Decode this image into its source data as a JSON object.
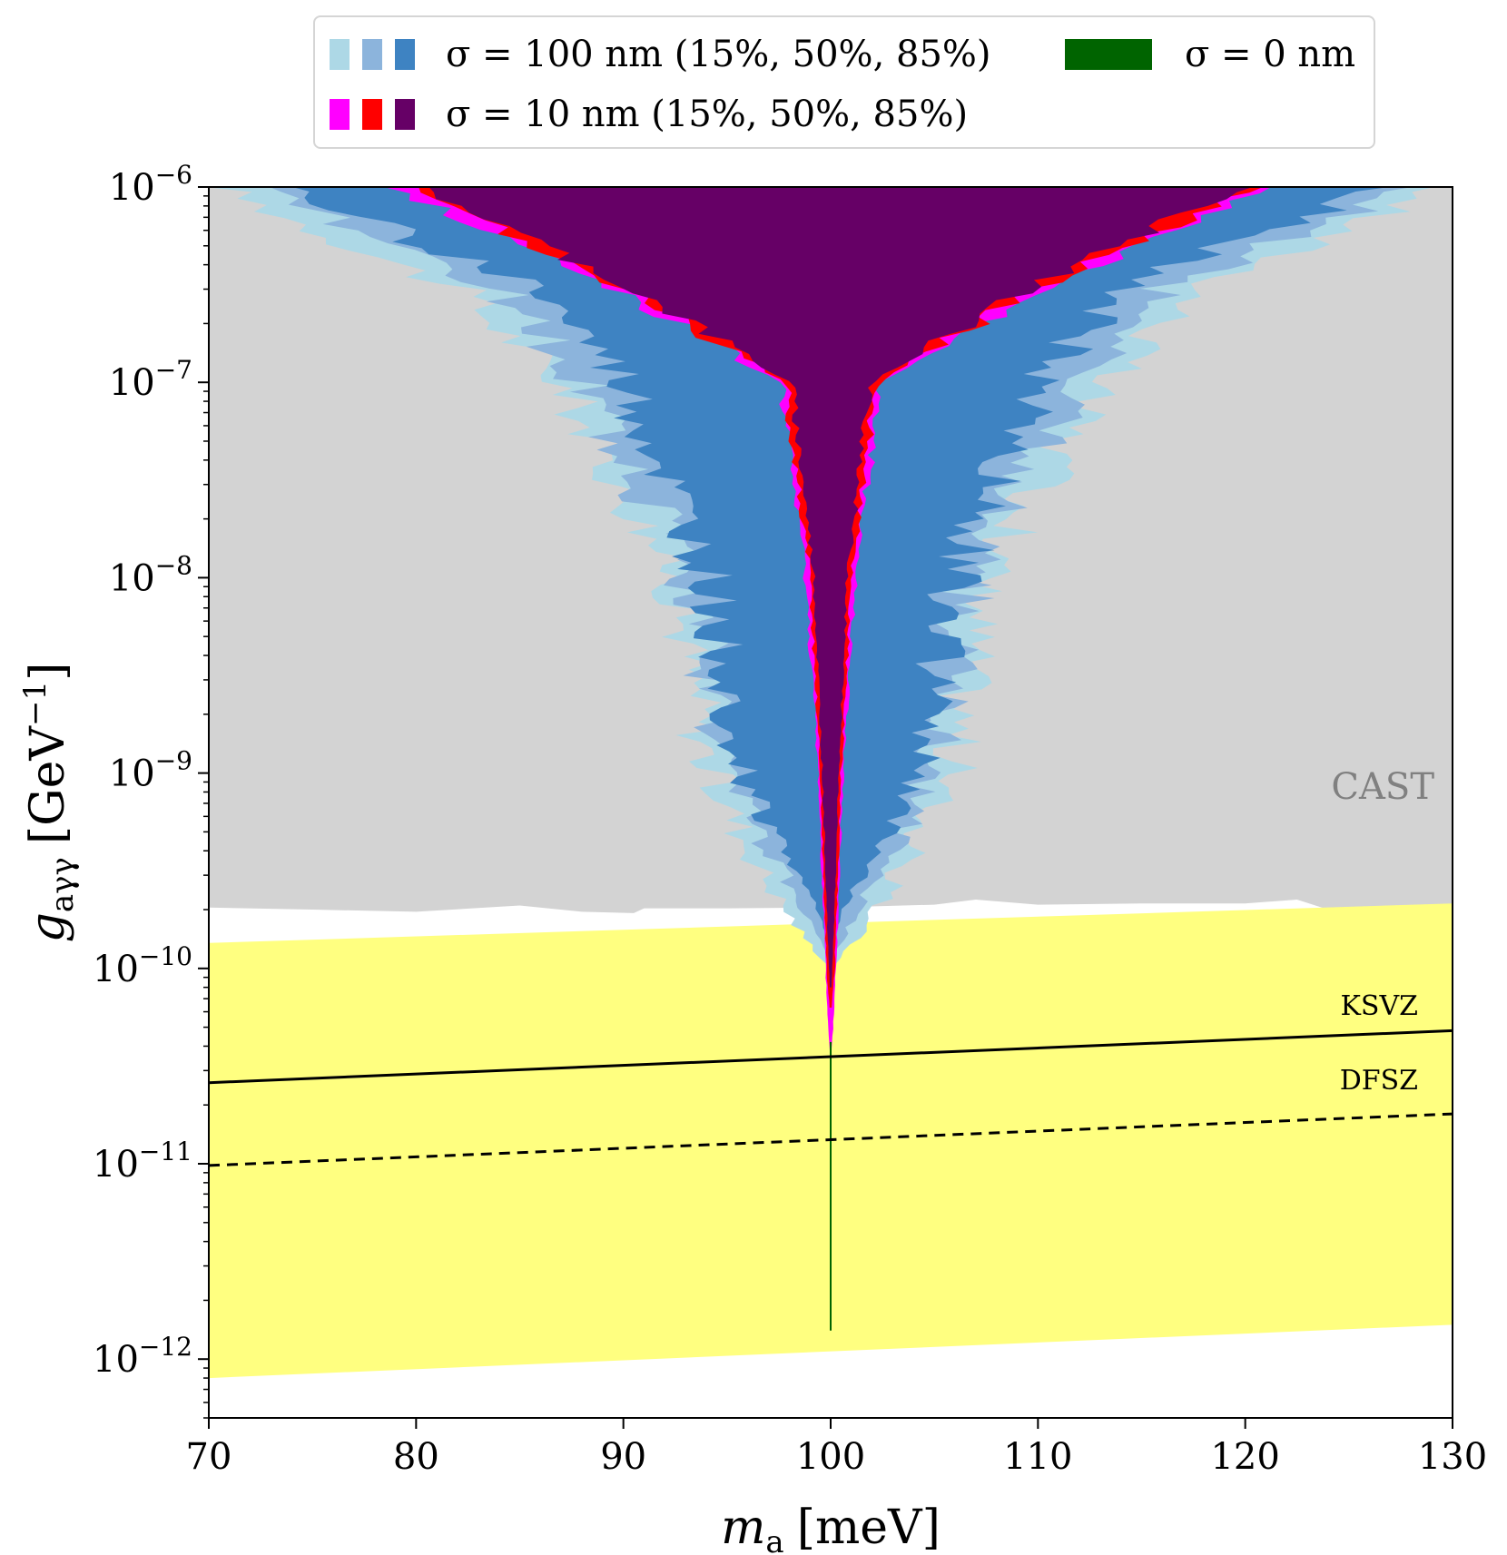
{
  "chart_data": {
    "type": "area",
    "xlabel": "m_a [meV]",
    "ylabel": "g_aγγ [GeV^-1]",
    "xlim": [
      70,
      130
    ],
    "ylim": [
      5e-13,
      1e-06
    ],
    "yscale": "log",
    "x_ticks": [
      "70",
      "80",
      "90",
      "100",
      "110",
      "120",
      "130"
    ],
    "y_ticks": [
      {
        "value": 1e-06,
        "base": "10",
        "exp": "−6"
      },
      {
        "value": 1e-07,
        "base": "10",
        "exp": "−7"
      },
      {
        "value": 1e-08,
        "base": "10",
        "exp": "−8"
      },
      {
        "value": 1e-09,
        "base": "10",
        "exp": "−9"
      },
      {
        "value": 1e-10,
        "base": "10",
        "exp": "−10"
      },
      {
        "value": 1e-11,
        "base": "10",
        "exp": "−11"
      },
      {
        "value": 1e-12,
        "base": "10",
        "exp": "−12"
      }
    ],
    "legend": {
      "placement": "top (above plot)",
      "entries": [
        {
          "label": "σ = 100 nm (15%, 50%, 85%)",
          "colors": [
            "#add8e6",
            "#8cb4dc",
            "#3e83c2"
          ]
        },
        {
          "label": "σ = 10 nm (15%, 50%, 85%)",
          "colors": [
            "#ff00ff",
            "#ff0000",
            "#660066"
          ]
        },
        {
          "label": "σ = 0 nm",
          "colors": [
            "#006400"
          ]
        }
      ]
    },
    "regions": {
      "cast": {
        "label": "CAST",
        "color": "#d3d3d3",
        "lower_boundary": [
          [
            70,
            2.05e-10
          ],
          [
            75,
            2e-10
          ],
          [
            80,
            1.95e-10
          ],
          [
            85,
            2.1e-10
          ],
          [
            88,
            1.95e-10
          ],
          [
            90.5,
            1.92e-10
          ],
          [
            91,
            2.03e-10
          ],
          [
            95,
            2.03e-10
          ],
          [
            100,
            2.05e-10
          ],
          [
            105,
            2.12e-10
          ],
          [
            107,
            2.25e-10
          ],
          [
            110,
            2.12e-10
          ],
          [
            115,
            2.15e-10
          ],
          [
            120,
            2.15e-10
          ],
          [
            122.5,
            2.25e-10
          ],
          [
            124,
            2e-10
          ],
          [
            125,
            2.05e-10
          ],
          [
            130,
            2.1e-10
          ]
        ]
      },
      "qcd_band": {
        "color": "#ffff80",
        "upper": [
          [
            70,
            1.35e-10
          ],
          [
            130,
            2.15e-10
          ]
        ],
        "lower": [
          [
            70,
            8e-13
          ],
          [
            130,
            1.5e-12
          ]
        ]
      },
      "sigma_100nm": [
        {
          "quantile": "15%",
          "color": "#add8e6",
          "width_half": [
            [
              1.1e-06,
              30.5
            ],
            [
              3e-07,
              18
            ],
            [
              1e-07,
              13
            ],
            [
              1e-08,
              7.5
            ],
            [
              1e-09,
              5.8
            ],
            [
              3e-10,
              3.2
            ],
            [
              1.5e-10,
              1.4
            ],
            [
              1.05e-10,
              0.2
            ]
          ]
        },
        {
          "quantile": "50%",
          "color": "#8cb4dc",
          "width_half": [
            [
              1.1e-06,
              29
            ],
            [
              3e-07,
              16
            ],
            [
              1e-07,
              12
            ],
            [
              1e-08,
              6.8
            ],
            [
              1e-09,
              5.0
            ],
            [
              3e-10,
              2.3
            ],
            [
              1.7e-10,
              1.0
            ],
            [
              1.2e-10,
              0.2
            ]
          ]
        },
        {
          "quantile": "85%",
          "color": "#3e83c2",
          "width_half": [
            [
              1.1e-06,
              27.5
            ],
            [
              3e-07,
              14
            ],
            [
              1e-07,
              10
            ],
            [
              1e-08,
              6.0
            ],
            [
              1e-09,
              4.3
            ],
            [
              3e-10,
              1.6
            ],
            [
              2e-10,
              0.6
            ],
            [
              1.5e-10,
              0.2
            ]
          ]
        }
      ],
      "sigma_10nm": [
        {
          "quantile": "15%",
          "color": "#ff00ff",
          "width_half": [
            [
              1.1e-06,
              22
            ],
            [
              3e-07,
              10.3
            ],
            [
              1e-07,
              2.4
            ],
            [
              1e-08,
              1.2
            ],
            [
              1e-09,
              0.6
            ],
            [
              1e-10,
              0.25
            ],
            [
              5e-11,
              0.12
            ],
            [
              3.8e-11,
              0.04
            ]
          ]
        },
        {
          "quantile": "50%",
          "color": "#ff0000",
          "width_half": [
            [
              1.1e-06,
              21.3
            ],
            [
              3e-07,
              9.9
            ],
            [
              1e-07,
              2.2
            ],
            [
              1e-08,
              1.0
            ],
            [
              1e-09,
              0.5
            ],
            [
              1e-10,
              0.2
            ],
            [
              6.3e-11,
              0.05
            ]
          ]
        },
        {
          "quantile": "85%",
          "color": "#660066",
          "width_half": [
            [
              1.1e-06,
              20.5
            ],
            [
              3e-07,
              9.5
            ],
            [
              1e-07,
              1.9
            ],
            [
              1e-08,
              0.8
            ],
            [
              1e-09,
              0.4
            ],
            [
              1.5e-10,
              0.15
            ],
            [
              8e-11,
              0.04
            ]
          ]
        }
      ],
      "sigma_0nm": {
        "color": "#006400",
        "x": 100,
        "y_range": [
          1.4e-12,
          4.2e-11
        ]
      }
    },
    "lines": [
      {
        "name": "KSVZ",
        "style": "solid",
        "points": [
          [
            70,
            2.6e-11
          ],
          [
            130,
            4.8e-11
          ]
        ]
      },
      {
        "name": "DFSZ",
        "style": "dashed",
        "points": [
          [
            70,
            9.8e-12
          ],
          [
            130,
            1.8e-11
          ]
        ]
      }
    ],
    "annotations": {
      "cast": "CAST",
      "ksvz": "KSVZ",
      "dfsz": "DFSZ"
    },
    "axis_label_parts": {
      "x_symbol": "m",
      "x_sub": "a",
      "x_unit": "[meV]",
      "y_symbol": "g",
      "y_sub": "aγγ",
      "y_unit": "[GeV",
      "y_unit_exp": "−1",
      "y_unit_close": "]"
    },
    "grid": false
  }
}
